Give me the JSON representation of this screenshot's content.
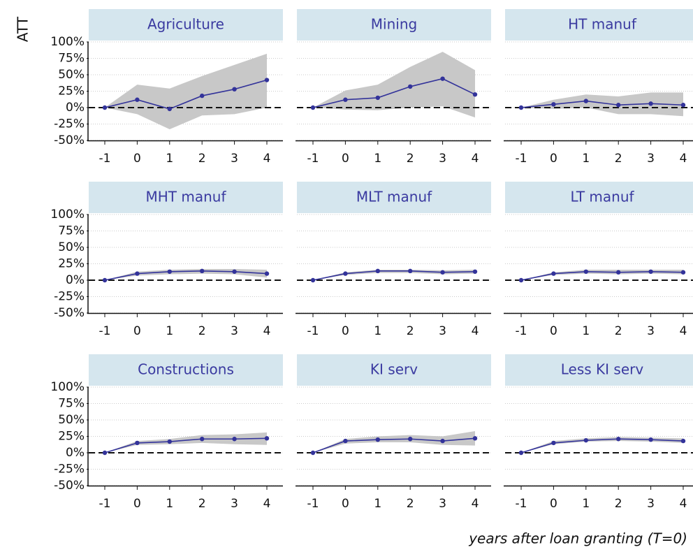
{
  "y_label": "ATT",
  "x_label": "years after loan granting (T=0)",
  "axes": {
    "ylim": [
      -50,
      100
    ],
    "yticks": [
      {
        "value": -50,
        "label": "-50%"
      },
      {
        "value": -25,
        "label": "-25%"
      },
      {
        "value": 0,
        "label": "0%"
      },
      {
        "value": 25,
        "label": "25%"
      },
      {
        "value": 50,
        "label": "50%"
      },
      {
        "value": 75,
        "label": "75%"
      },
      {
        "value": 100,
        "label": "100%"
      }
    ],
    "zero_line": 0,
    "grid": true
  },
  "chart_data": [
    {
      "type": "line",
      "title": "Agriculture",
      "x": [
        -1,
        0,
        1,
        2,
        3,
        4
      ],
      "values": [
        0,
        12,
        -2,
        18,
        28,
        42
      ],
      "lower": [
        0,
        -10,
        -33,
        -12,
        -10,
        0
      ],
      "upper": [
        0,
        35,
        29,
        48,
        65,
        82
      ],
      "color": "#33339a",
      "band_color": "#c8c8c8"
    },
    {
      "type": "line",
      "title": "Mining",
      "x": [
        -1,
        0,
        1,
        2,
        3,
        4
      ],
      "values": [
        0,
        12,
        15,
        32,
        44,
        20
      ],
      "lower": [
        0,
        -3,
        -4,
        0,
        2,
        -15
      ],
      "upper": [
        0,
        26,
        35,
        62,
        85,
        57
      ],
      "color": "#33339a",
      "band_color": "#c8c8c8"
    },
    {
      "type": "line",
      "title": "HT manuf",
      "x": [
        -1,
        0,
        1,
        2,
        3,
        4
      ],
      "values": [
        0,
        5,
        10,
        4,
        6,
        4
      ],
      "lower": [
        0,
        -2,
        0,
        -10,
        -10,
        -13
      ],
      "upper": [
        0,
        12,
        20,
        17,
        23,
        23
      ],
      "color": "#33339a",
      "band_color": "#c8c8c8"
    },
    {
      "type": "line",
      "title": "MHT manuf",
      "x": [
        -1,
        0,
        1,
        2,
        3,
        4
      ],
      "values": [
        0,
        10,
        13,
        14,
        13,
        10
      ],
      "lower": [
        0,
        7,
        9,
        10,
        9,
        4
      ],
      "upper": [
        0,
        13,
        16,
        17,
        17,
        16
      ],
      "color": "#33339a",
      "band_color": "#c8c8c8"
    },
    {
      "type": "line",
      "title": "MLT manuf",
      "x": [
        -1,
        0,
        1,
        2,
        3,
        4
      ],
      "values": [
        0,
        10,
        14,
        14,
        12,
        13
      ],
      "lower": [
        0,
        8,
        11,
        11,
        9,
        10
      ],
      "upper": [
        0,
        12,
        16,
        16,
        15,
        16
      ],
      "color": "#33339a",
      "band_color": "#c8c8c8"
    },
    {
      "type": "line",
      "title": "LT manuf",
      "x": [
        -1,
        0,
        1,
        2,
        3,
        4
      ],
      "values": [
        0,
        10,
        13,
        12,
        13,
        12
      ],
      "lower": [
        0,
        8,
        10,
        9,
        10,
        9
      ],
      "upper": [
        0,
        12,
        16,
        16,
        16,
        16
      ],
      "color": "#33339a",
      "band_color": "#c8c8c8"
    },
    {
      "type": "line",
      "title": "Constructions",
      "x": [
        -1,
        0,
        1,
        2,
        3,
        4
      ],
      "values": [
        0,
        15,
        17,
        21,
        21,
        22
      ],
      "lower": [
        0,
        12,
        13,
        15,
        13,
        12
      ],
      "upper": [
        0,
        18,
        21,
        27,
        28,
        31
      ],
      "color": "#33339a",
      "band_color": "#c8c8c8"
    },
    {
      "type": "line",
      "title": "KI serv",
      "x": [
        -1,
        0,
        1,
        2,
        3,
        4
      ],
      "values": [
        0,
        18,
        20,
        21,
        18,
        22
      ],
      "lower": [
        0,
        14,
        16,
        16,
        12,
        11
      ],
      "upper": [
        0,
        21,
        25,
        27,
        25,
        33
      ],
      "color": "#33339a",
      "band_color": "#c8c8c8"
    },
    {
      "type": "line",
      "title": "Less KI serv",
      "x": [
        -1,
        0,
        1,
        2,
        3,
        4
      ],
      "values": [
        0,
        15,
        19,
        21,
        20,
        18
      ],
      "lower": [
        0,
        13,
        17,
        18,
        17,
        15
      ],
      "upper": [
        0,
        18,
        22,
        24,
        23,
        22
      ],
      "color": "#33339a",
      "band_color": "#c8c8c8"
    }
  ]
}
